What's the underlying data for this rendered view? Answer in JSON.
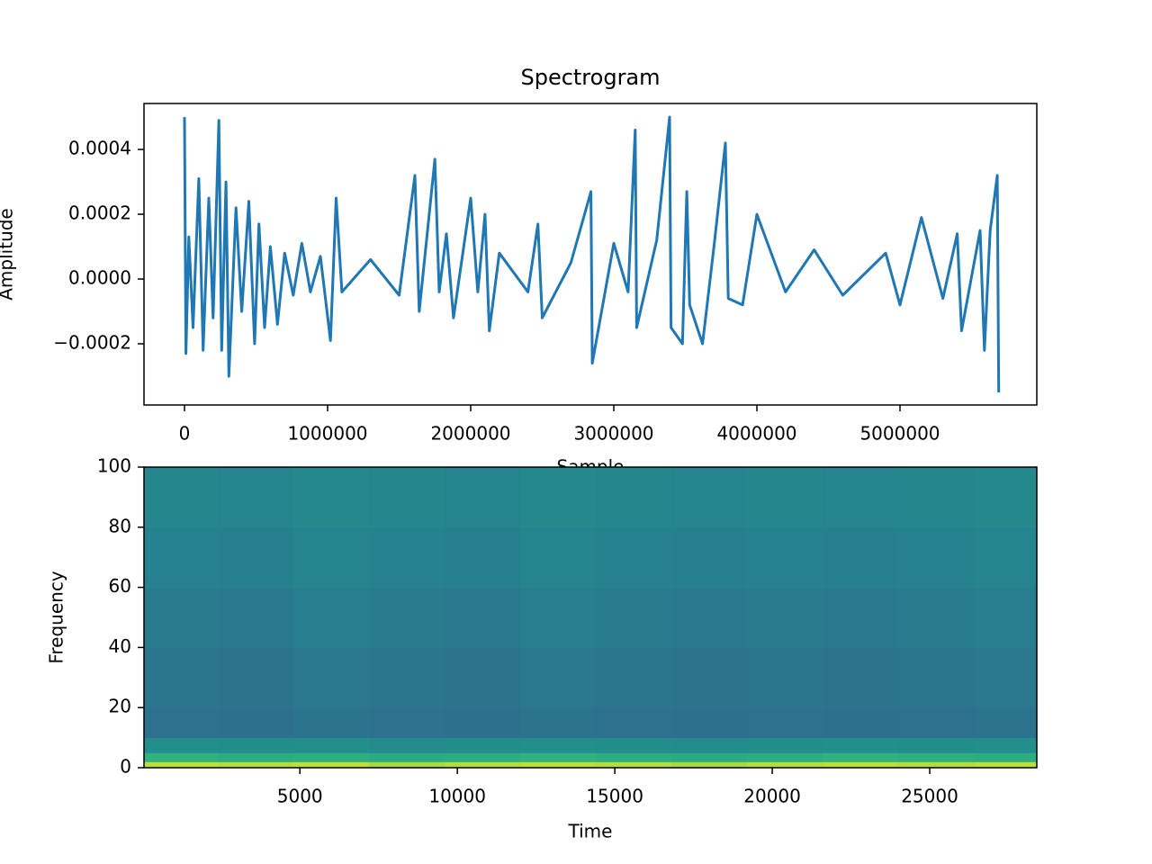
{
  "chart_data": [
    {
      "type": "line",
      "title": "Spectrogram",
      "xlabel": "Sample",
      "ylabel": "Amplitude",
      "color": "#1f77b4",
      "x": [
        0,
        10000,
        30000,
        60000,
        100000,
        130000,
        170000,
        200000,
        240000,
        260000,
        290000,
        310000,
        360000,
        400000,
        450000,
        490000,
        520000,
        560000,
        600000,
        650000,
        700000,
        760000,
        820000,
        880000,
        950000,
        1020000,
        1060000,
        1100000,
        1300000,
        1500000,
        1610000,
        1640000,
        1750000,
        1780000,
        1830000,
        1880000,
        2000000,
        2050000,
        2100000,
        2130000,
        2200000,
        2400000,
        2470000,
        2500000,
        2700000,
        2840000,
        2850000,
        3000000,
        3100000,
        3150000,
        3160000,
        3300000,
        3390000,
        3400000,
        3480000,
        3510000,
        3530000,
        3620000,
        3700000,
        3780000,
        3800000,
        3900000,
        4000000,
        4200000,
        4400000,
        4600000,
        4900000,
        5000000,
        5150000,
        5300000,
        5400000,
        5430000,
        5560000,
        5590000,
        5630000,
        5680000,
        5690000
      ],
      "values": [
        0.0005,
        -0.00023,
        0.00013,
        -0.00015,
        0.00031,
        -0.00022,
        0.00025,
        -0.00012,
        0.00049,
        -0.00022,
        0.0003,
        -0.0003,
        0.00022,
        -0.0001,
        0.00024,
        -0.0002,
        0.00017,
        -0.00015,
        0.0001,
        -0.00014,
        8e-05,
        -5e-05,
        0.00011,
        -4e-05,
        7e-05,
        -0.00019,
        0.00025,
        -4e-05,
        6e-05,
        -5e-05,
        0.00032,
        -0.0001,
        0.00037,
        -4e-05,
        0.00014,
        -0.00012,
        0.00025,
        -4e-05,
        0.0002,
        -0.00016,
        8e-05,
        -4e-05,
        0.00017,
        -0.00012,
        5e-05,
        0.00027,
        -0.00026,
        0.00011,
        -4e-05,
        0.00046,
        -0.00015,
        0.00012,
        0.0005,
        -0.00015,
        -0.0002,
        0.00027,
        -8e-05,
        -0.0002,
        0.0001,
        0.00042,
        -6e-05,
        -8e-05,
        0.0002,
        -4e-05,
        9e-05,
        -5e-05,
        8e-05,
        -8e-05,
        0.00019,
        -6e-05,
        0.00014,
        -0.00016,
        0.00015,
        -0.00022,
        0.00015,
        0.00032,
        -0.00035
      ],
      "xlim": [
        -283000,
        5956000
      ],
      "xticks": [
        0,
        1000000,
        2000000,
        3000000,
        4000000,
        5000000
      ],
      "ylim": [
        -0.000389,
        0.000542
      ],
      "yticks": [
        {
          "value": -0.0002,
          "label": "−0.0002"
        },
        {
          "value": 0,
          "label": "0.0000"
        },
        {
          "value": 0.0002,
          "label": "0.0002"
        },
        {
          "value": 0.0004,
          "label": "0.0004"
        }
      ]
    },
    {
      "type": "heatmap",
      "xlabel": "Time",
      "ylabel": "Frequency",
      "colormap": "viridis",
      "time_bins": [
        50,
        2400,
        4800,
        7200,
        9600,
        12000,
        14400,
        16800,
        19200,
        21600,
        24000,
        26400,
        28400
      ],
      "freq_bins": [
        0,
        2,
        5,
        10,
        20,
        40,
        60,
        80,
        100
      ],
      "z": [
        [
          0.95,
          0.94,
          0.95,
          0.93,
          0.94,
          0.95,
          0.94,
          0.93,
          0.94,
          0.95,
          0.94,
          0.95
        ],
        [
          0.72,
          0.7,
          0.71,
          0.69,
          0.7,
          0.72,
          0.7,
          0.69,
          0.7,
          0.72,
          0.71,
          0.7
        ],
        [
          0.56,
          0.55,
          0.56,
          0.54,
          0.55,
          0.56,
          0.55,
          0.54,
          0.55,
          0.56,
          0.55,
          0.56
        ],
        [
          0.42,
          0.41,
          0.43,
          0.42,
          0.41,
          0.43,
          0.42,
          0.41,
          0.42,
          0.41,
          0.42,
          0.43
        ],
        [
          0.44,
          0.43,
          0.45,
          0.44,
          0.43,
          0.45,
          0.44,
          0.43,
          0.44,
          0.43,
          0.44,
          0.45
        ],
        [
          0.47,
          0.46,
          0.48,
          0.47,
          0.46,
          0.48,
          0.47,
          0.46,
          0.47,
          0.46,
          0.47,
          0.48
        ],
        [
          0.5,
          0.49,
          0.51,
          0.5,
          0.49,
          0.51,
          0.5,
          0.49,
          0.5,
          0.49,
          0.5,
          0.51
        ],
        [
          0.52,
          0.51,
          0.53,
          0.52,
          0.51,
          0.53,
          0.52,
          0.51,
          0.52,
          0.51,
          0.52,
          0.53
        ]
      ],
      "xlim": [
        50,
        28400
      ],
      "xticks": [
        5000,
        10000,
        15000,
        20000,
        25000
      ],
      "ylim": [
        0,
        100
      ],
      "yticks": [
        0,
        20,
        40,
        60,
        80,
        100
      ]
    }
  ]
}
